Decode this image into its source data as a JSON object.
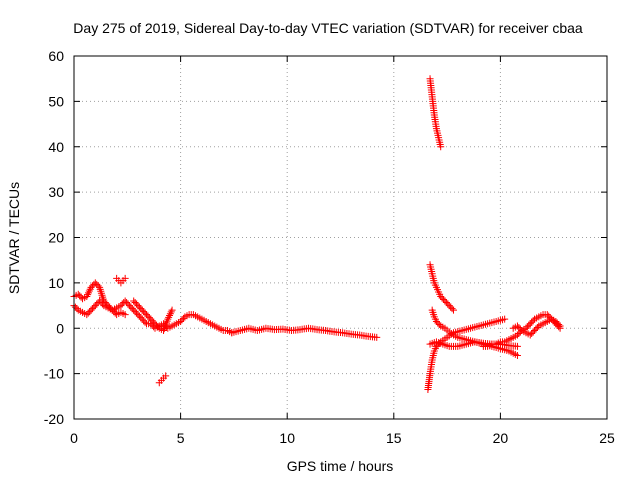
{
  "chart_data": {
    "type": "scatter",
    "title": "Day 275 of 2019, Sidereal Day-to-day VTEC variation (SDTVAR) for receiver cbaa",
    "xlabel": "GPS time / hours",
    "ylabel": "SDTVAR / TECUs",
    "xlim": [
      0,
      25
    ],
    "ylim": [
      -20,
      60
    ],
    "xticks": [
      0,
      5,
      10,
      15,
      20,
      25
    ],
    "yticks": [
      -20,
      -10,
      0,
      10,
      20,
      30,
      40,
      50,
      60
    ],
    "xtick_labels": [
      "0",
      "5",
      "10",
      "15",
      "20",
      "25"
    ],
    "ytick_labels": [
      "-20",
      "-10",
      "0",
      "10",
      "20",
      "30",
      "40",
      "50",
      "60"
    ],
    "grid": true,
    "marker": "plus",
    "colors": {
      "series": "#ff0000",
      "grid": "#a0a0a0",
      "frame": "#000000"
    },
    "series": [
      {
        "name": "SDTVAR",
        "segments": [
          {
            "x": [
              0.0,
              0.2,
              0.4,
              0.6,
              0.8,
              1.0,
              1.2,
              1.4,
              1.6,
              1.8,
              2.0,
              2.2,
              2.4,
              2.6,
              2.8,
              3.0,
              3.2,
              3.4,
              3.6,
              3.8,
              4.0,
              4.2,
              4.4,
              4.6,
              4.8,
              5.0,
              5.2,
              5.4,
              5.6,
              5.8,
              6.0,
              6.2,
              6.4,
              6.6,
              6.8,
              7.0,
              7.2,
              7.4
            ],
            "y": [
              7,
              7.5,
              6.5,
              7,
              9,
              10,
              9,
              6,
              5,
              4,
              4.5,
              5,
              6,
              5,
              4,
              3,
              2,
              1,
              1,
              0,
              0.5,
              1,
              0,
              0.5,
              1,
              1.5,
              2.5,
              3,
              3,
              2.5,
              2,
              1.5,
              1,
              0.5,
              0,
              -0.5,
              -0.5,
              -1
            ]
          },
          {
            "x": [
              0.0,
              0.2,
              0.4,
              0.6,
              0.8,
              1.0,
              1.2,
              1.4,
              1.6,
              1.8,
              2.0,
              2.2,
              2.4
            ],
            "y": [
              5,
              4,
              3.5,
              3,
              4,
              5,
              6,
              5,
              4.5,
              4,
              3,
              3.5,
              3
            ]
          },
          {
            "x": [
              2.0,
              2.1,
              2.2,
              2.3,
              2.4
            ],
            "y": [
              11,
              10.5,
              10,
              10.5,
              11
            ]
          },
          {
            "x": [
              2.8,
              3.0,
              3.2,
              3.4,
              3.6,
              3.8,
              4.0,
              4.2,
              4.4,
              4.6
            ],
            "y": [
              6,
              5,
              4,
              3,
              2,
              1,
              0,
              -0.5,
              2,
              4
            ]
          },
          {
            "x": [
              7.4,
              7.8,
              8.2,
              8.6,
              9.0,
              9.4,
              9.8,
              10.2,
              10.6,
              11.0,
              11.4,
              11.8,
              12.2,
              12.6,
              13.0,
              13.4,
              13.8,
              14.2
            ],
            "y": [
              -1,
              -0.5,
              0,
              -0.5,
              0,
              -0.3,
              -0.2,
              -0.5,
              -0.3,
              0,
              -0.3,
              -0.5,
              -0.8,
              -1,
              -1.3,
              -1.5,
              -1.8,
              -2
            ]
          },
          {
            "x": [
              4.0,
              4.1,
              4.2,
              4.3
            ],
            "y": [
              -12,
              -11.5,
              -11,
              -10.5
            ]
          },
          {
            "x": [
              16.7,
              16.75,
              16.8,
              16.85,
              16.9,
              16.95,
              17.0,
              17.05,
              17.1,
              17.15,
              17.2
            ],
            "y": [
              55,
              53,
              51,
              49,
              47,
              45.5,
              44,
              43,
              42,
              41,
              40
            ]
          },
          {
            "x": [
              16.7,
              16.8,
              16.9,
              17.0,
              17.1,
              17.2,
              17.4,
              17.6,
              17.8
            ],
            "y": [
              14,
              12,
              10,
              9,
              8,
              7,
              6,
              5,
              4
            ]
          },
          {
            "x": [
              16.8,
              16.9,
              17.0,
              17.2,
              17.4,
              17.6,
              17.8,
              18.0,
              18.4,
              18.8,
              19.2,
              19.6,
              20.0,
              20.4,
              20.8
            ],
            "y": [
              4,
              2.5,
              1.5,
              0.5,
              0,
              -0.8,
              -1.5,
              -2,
              -2.5,
              -3,
              -3.3,
              -3.5,
              -3.5,
              -3.8,
              -4
            ]
          },
          {
            "x": [
              16.6,
              16.7,
              16.8,
              16.9,
              17.0,
              17.2,
              17.5,
              17.8,
              18.2,
              18.6,
              19.0,
              19.4,
              19.8,
              20.2
            ],
            "y": [
              -13.5,
              -10,
              -7,
              -5,
              -4,
              -3,
              -2,
              -1,
              -0.5,
              0,
              0.5,
              1,
              1.5,
              2
            ]
          },
          {
            "x": [
              16.7,
              17.0,
              17.3,
              17.6,
              18.0,
              18.4,
              18.8,
              19.2,
              19.6,
              20.0,
              20.4,
              20.8
            ],
            "y": [
              -3.5,
              -3,
              -3.5,
              -4,
              -4,
              -3.5,
              -3,
              -3.5,
              -4,
              -4.5,
              -5,
              -6
            ]
          },
          {
            "x": [
              19.2,
              19.4,
              19.6,
              19.8,
              20.0,
              20.2,
              20.4,
              20.6,
              20.8,
              21.0,
              21.2,
              21.4,
              21.6,
              21.8,
              22.0,
              22.2,
              22.4,
              22.6,
              22.8
            ],
            "y": [
              -4,
              -4,
              -3.5,
              -3.5,
              -3,
              -3,
              -2.5,
              -2,
              -1.5,
              -0.5,
              0,
              1,
              2,
              2.5,
              3,
              3,
              2,
              1,
              0
            ]
          },
          {
            "x": [
              20.6,
              20.8,
              21.0,
              21.2,
              21.4,
              21.6,
              21.8,
              22.0,
              22.2,
              22.4,
              22.6,
              22.8
            ],
            "y": [
              0,
              0.5,
              -0.5,
              -1,
              -1.5,
              -0.5,
              0.5,
              1,
              1.5,
              2,
              1.5,
              0.5
            ]
          }
        ]
      }
    ]
  }
}
